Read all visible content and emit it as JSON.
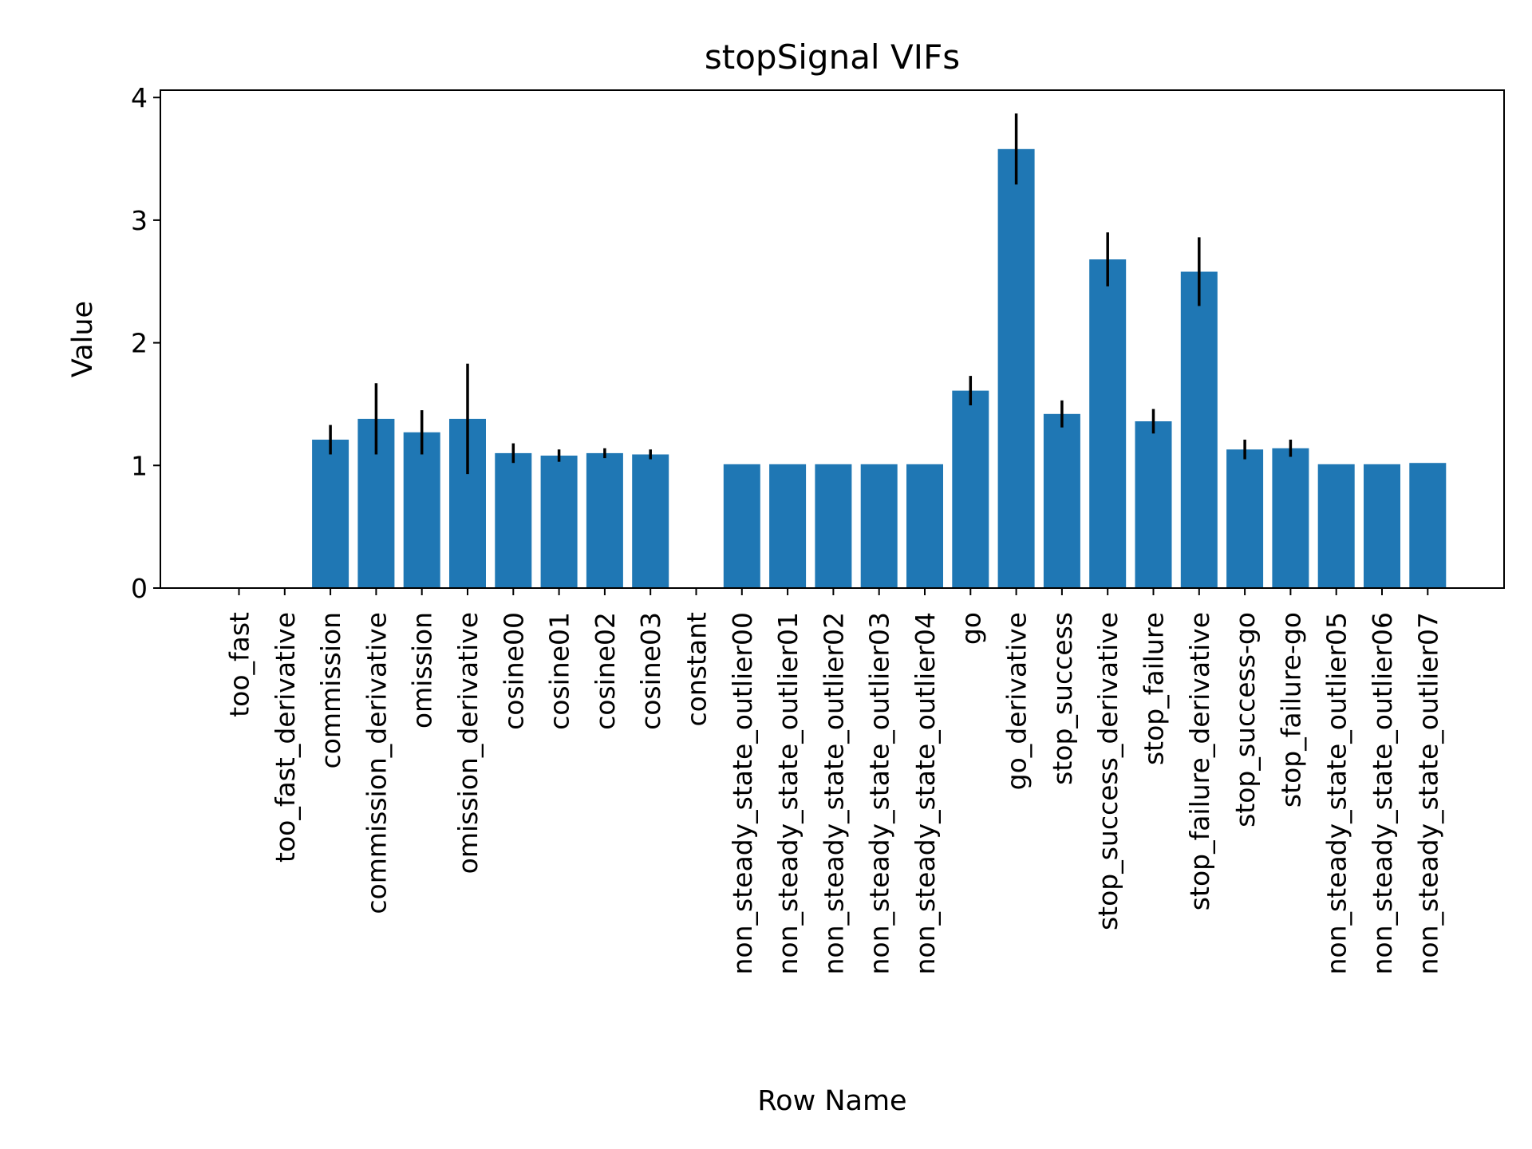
{
  "chart_data": {
    "type": "bar",
    "title": "stopSignal VIFs",
    "xlabel": "Row Name",
    "ylabel": "Value",
    "ylim": [
      0,
      4.06
    ],
    "yticks": [
      0,
      1,
      2,
      3,
      4
    ],
    "grid": false,
    "bar_color": "#1f77b4",
    "error_color": "#000000",
    "categories": [
      "too_fast",
      "too_fast_derivative",
      "commission",
      "commission_derivative",
      "omission",
      "omission_derivative",
      "cosine00",
      "cosine01",
      "cosine02",
      "cosine03",
      "constant",
      "non_steady_state_outlier00",
      "non_steady_state_outlier01",
      "non_steady_state_outlier02",
      "non_steady_state_outlier03",
      "non_steady_state_outlier04",
      "go",
      "go_derivative",
      "stop_success",
      "stop_success_derivative",
      "stop_failure",
      "stop_failure_derivative",
      "stop_success-go",
      "stop_failure-go",
      "non_steady_state_outlier05",
      "non_steady_state_outlier06",
      "non_steady_state_outlier07"
    ],
    "values": [
      0,
      0,
      1.21,
      1.38,
      1.27,
      1.38,
      1.1,
      1.08,
      1.1,
      1.09,
      0,
      1.01,
      1.01,
      1.01,
      1.01,
      1.01,
      1.61,
      3.58,
      1.42,
      2.68,
      1.36,
      2.58,
      1.13,
      1.14,
      1.01,
      1.01,
      1.02
    ],
    "errors": [
      0,
      0,
      0.12,
      0.29,
      0.18,
      0.45,
      0.08,
      0.05,
      0.04,
      0.04,
      0,
      0,
      0,
      0,
      0,
      0,
      0.12,
      0.29,
      0.11,
      0.22,
      0.1,
      0.28,
      0.08,
      0.07,
      0,
      0,
      0
    ]
  }
}
